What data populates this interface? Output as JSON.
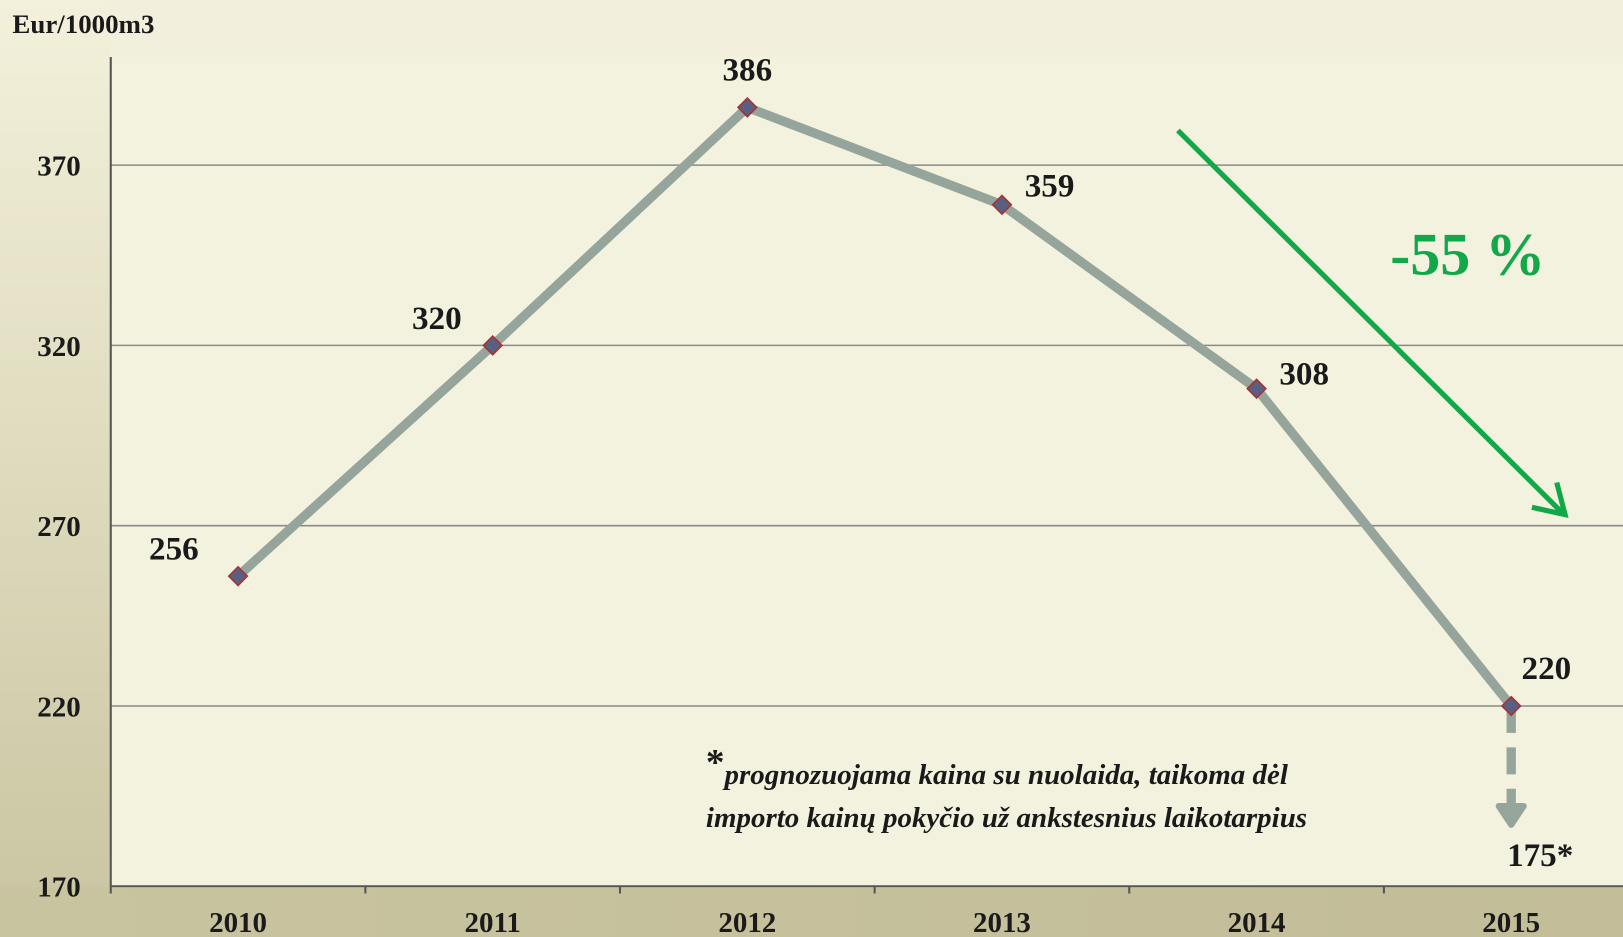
{
  "chart_data": {
    "type": "line",
    "y_axis_label": "Eur/1000m3",
    "categories": [
      "2010",
      "2011",
      "2012",
      "2013",
      "2014",
      "2015"
    ],
    "values": [
      256,
      320,
      386,
      359,
      308,
      220
    ],
    "color": "#95a59c",
    "marker_color": "#5a5f82",
    "ylim": [
      170,
      400
    ],
    "yticks": [
      170,
      220,
      270,
      320,
      370
    ],
    "grid": true,
    "forecast": {
      "value": 175,
      "value_label": "175*"
    },
    "annotation": "-55 %",
    "annotation_color": "#12a84a",
    "note": {
      "marker": "*",
      "lines": [
        "prognozuojama kaina su nuolaida, taikoma dėl",
        "importo kainų pokyčio už ankstesnius laikotarpius"
      ]
    }
  }
}
